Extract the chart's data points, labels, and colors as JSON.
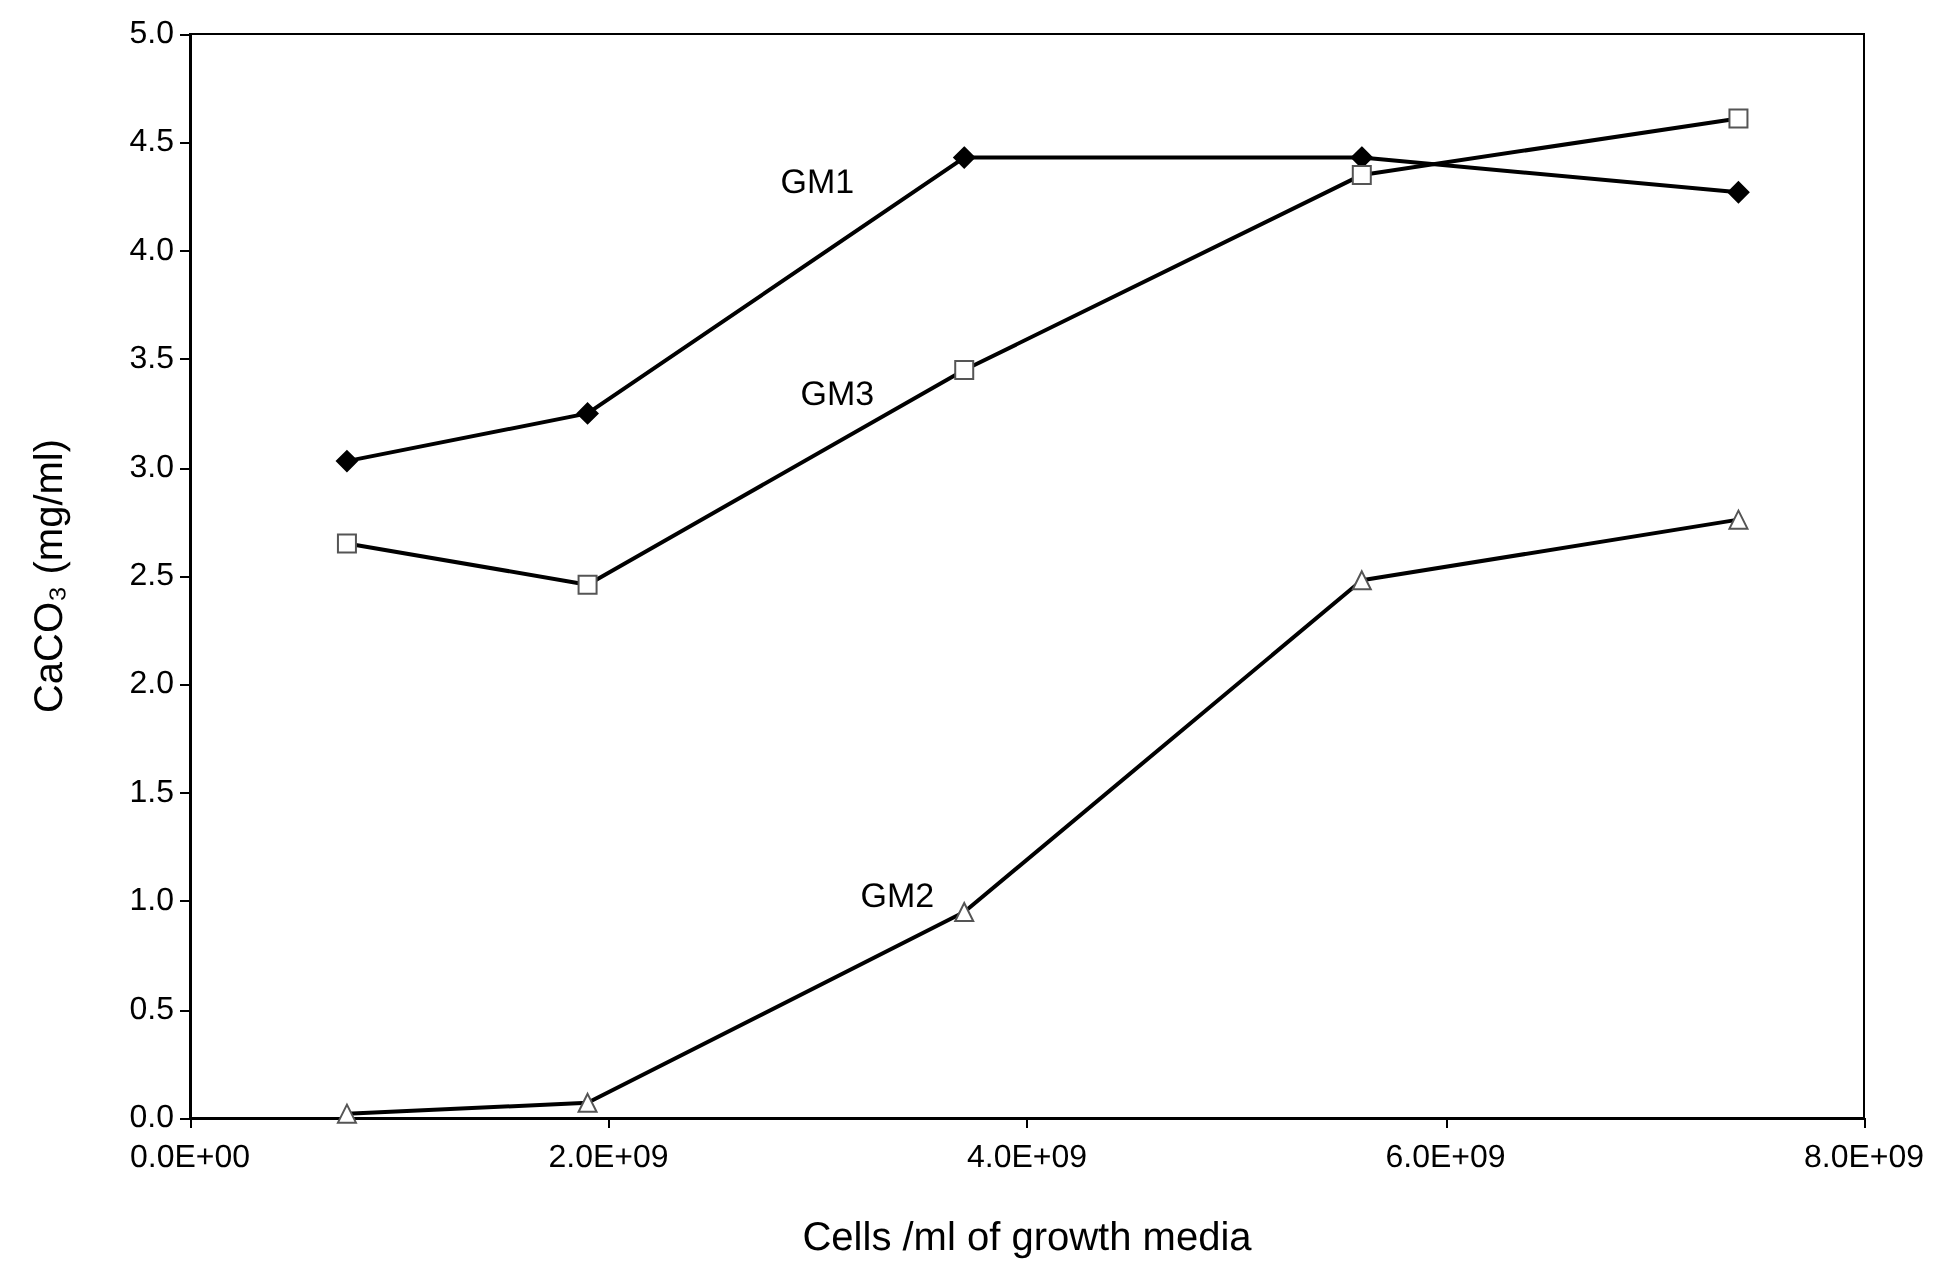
{
  "chart_data": {
    "type": "line",
    "xlabel": "Cells /ml of growth media",
    "ylabel": "CaCO₃ (mg/ml)",
    "x": [
      750000000,
      1900000000,
      3700000000,
      5600000000,
      7400000000
    ],
    "series": [
      {
        "name": "GM1",
        "color": "#000000",
        "marker": "diamond",
        "values": [
          3.03,
          3.25,
          4.43,
          4.43,
          4.27
        ]
      },
      {
        "name": "GM3",
        "color": "#000000",
        "marker": "square",
        "values": [
          2.65,
          2.46,
          3.45,
          4.35,
          4.61
        ]
      },
      {
        "name": "GM2",
        "color": "#000000",
        "marker": "triangle",
        "values": [
          0.02,
          0.07,
          0.95,
          2.48,
          2.76
        ]
      }
    ],
    "xlim": [
      0,
      8000000000
    ],
    "xticks": [
      {
        "value": 0,
        "label": "0.0E+00"
      },
      {
        "value": 2000000000,
        "label": "2.0E+09"
      },
      {
        "value": 4000000000,
        "label": "4.0E+09"
      },
      {
        "value": 6000000000,
        "label": "6.0E+09"
      },
      {
        "value": 8000000000,
        "label": "8.0E+09"
      }
    ],
    "ylim": [
      0,
      5
    ],
    "yticks": [
      {
        "value": 0,
        "label": "0.0"
      },
      {
        "value": 0.5,
        "label": "0.5"
      },
      {
        "value": 1,
        "label": "1.0"
      },
      {
        "value": 1.5,
        "label": "1.5"
      },
      {
        "value": 2,
        "label": "2.0"
      },
      {
        "value": 2.5,
        "label": "2.5"
      },
      {
        "value": 3,
        "label": "3.0"
      },
      {
        "value": 3.5,
        "label": "3.5"
      },
      {
        "value": 4,
        "label": "4.0"
      },
      {
        "value": 4.5,
        "label": "4.5"
      },
      {
        "value": 5,
        "label": "5.0"
      }
    ],
    "grid": false,
    "legend": false,
    "line_style": "solid"
  }
}
